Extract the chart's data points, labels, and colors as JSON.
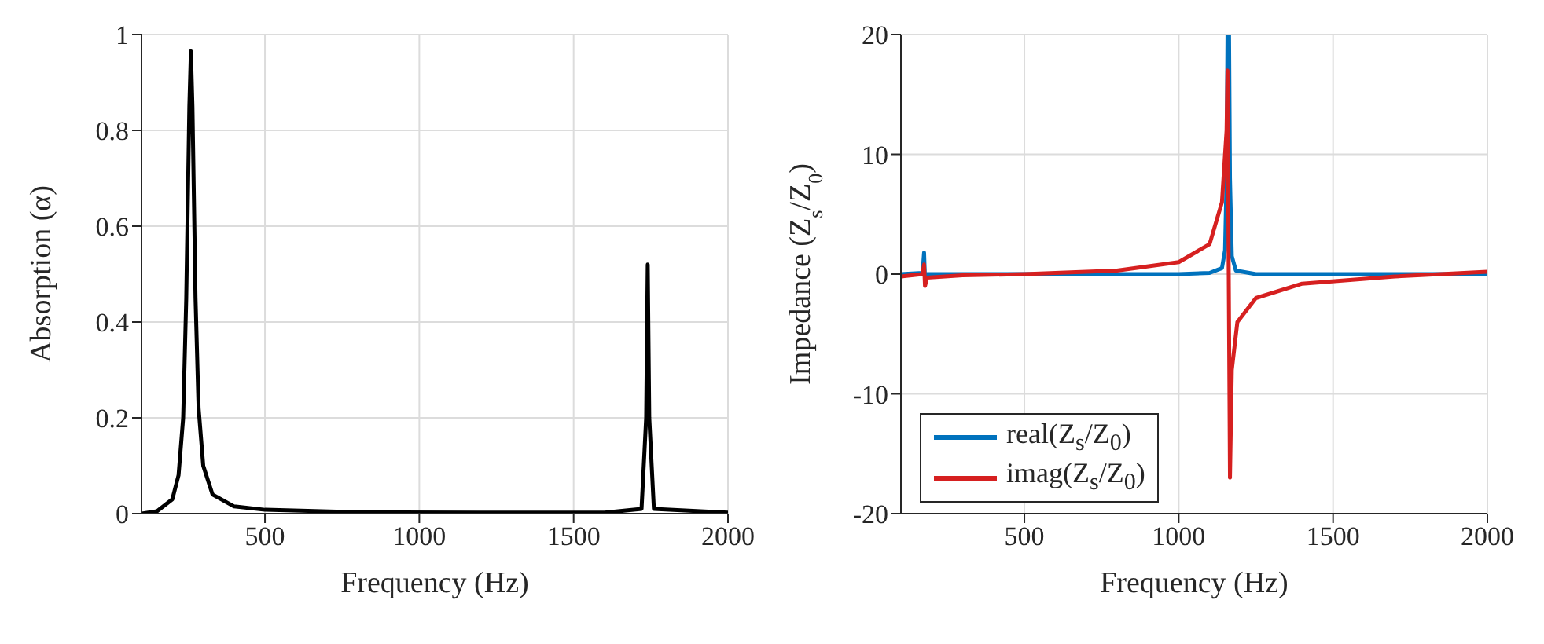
{
  "chart_data": [
    {
      "type": "line",
      "xlabel": "Frequency (Hz)",
      "ylabel": "Absorption (α)",
      "xlim": [
        100,
        2000
      ],
      "xticks": [
        500,
        1000,
        1500,
        2000
      ],
      "ylim": [
        0,
        1
      ],
      "yticks": [
        0,
        0.2,
        0.4,
        0.6,
        0.8,
        1
      ],
      "grid": true,
      "marker": "none",
      "line_style": "solid",
      "series": [
        {
          "color": "#000000",
          "x": [
            100,
            150,
            200,
            220,
            235,
            245,
            255,
            260,
            265,
            275,
            285,
            300,
            330,
            400,
            500,
            800,
            1200,
            1600,
            1720,
            1735,
            1740,
            1745,
            1760,
            2000
          ],
          "values": [
            0,
            0.005,
            0.03,
            0.08,
            0.2,
            0.45,
            0.85,
            0.965,
            0.85,
            0.45,
            0.22,
            0.1,
            0.04,
            0.015,
            0.008,
            0.003,
            0.002,
            0.002,
            0.01,
            0.2,
            0.52,
            0.2,
            0.01,
            0.002
          ]
        }
      ]
    },
    {
      "type": "line",
      "xlabel": "Frequency (Hz)",
      "ylabel": "Impedance (Z$_{s}$/Z$_{0}$)",
      "xlim": [
        100,
        2000
      ],
      "xticks": [
        500,
        1000,
        1500,
        2000
      ],
      "ylim": [
        -20,
        20
      ],
      "yticks": [
        -20,
        -10,
        0,
        10,
        20
      ],
      "grid": true,
      "legend": "bottom left",
      "marker": "none",
      "line_style": "solid",
      "series": [
        {
          "name": "real(Z$_{s}$/Z$_{0}$)",
          "color": "#0072bd",
          "x": [
            100,
            170,
            175,
            178,
            185,
            500,
            1000,
            1100,
            1140,
            1150,
            1155,
            1158,
            1163,
            1166,
            1172,
            1185,
            1250,
            2000
          ],
          "values": [
            0,
            0.1,
            1.8,
            -0.5,
            0,
            0,
            0,
            0.1,
            0.5,
            2,
            8,
            20,
            20,
            8,
            1.5,
            0.3,
            0,
            0
          ]
        },
        {
          "name": "imag(Z$_{s}$/Z$_{0}$)",
          "color": "#d62020",
          "x": [
            100,
            170,
            175,
            178,
            185,
            300,
            500,
            800,
            1000,
            1100,
            1140,
            1155,
            1158,
            1162,
            1166,
            1172,
            1190,
            1250,
            1400,
            1700,
            2000
          ],
          "values": [
            -0.2,
            0,
            0.8,
            -1,
            -0.3,
            -0.1,
            0,
            0.3,
            1,
            2.5,
            6,
            12,
            17,
            0,
            -17,
            -8,
            -4,
            -2,
            -0.8,
            -0.2,
            0.2
          ]
        }
      ]
    }
  ]
}
